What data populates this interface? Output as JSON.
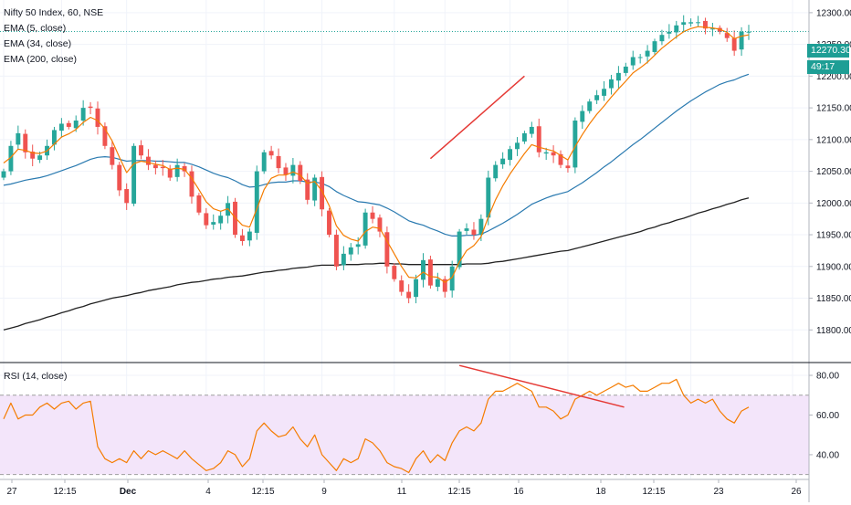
{
  "legend": {
    "symbol": "Nifty 50 Index, 60, NSE",
    "ema5": "EMA (5, close)",
    "ema34": "EMA (34, close)",
    "ema200": "EMA (200, close)",
    "rsi": "RSI (14, close)"
  },
  "price_badge": {
    "price": "12270.30",
    "countdown": "49:17"
  },
  "colors": {
    "up": "#26a69a",
    "down": "#ef5350",
    "ema5": "#f57c00",
    "ema34": "#2a7ab0",
    "ema200": "#222222",
    "rsi_line": "#f57c00",
    "rsi_band": "#f3e5fa",
    "trendline": "#e53935",
    "badge_bg": "#1e9e95",
    "axis_text": "#131722"
  },
  "chart_data": [
    {
      "type": "candlestick",
      "ylim": [
        11750,
        12320
      ],
      "yticks": [
        "12300.00",
        "12250.00",
        "12200.00",
        "12150.00",
        "12100.00",
        "12050.00",
        "12000.00",
        "11950.00",
        "11900.00",
        "11850.00",
        "11800.00"
      ],
      "ytick_values": [
        12300,
        12250,
        12200,
        12150,
        12100,
        12050,
        12000,
        11950,
        11900,
        11850,
        11800
      ],
      "xticks": [
        "27",
        "12:15",
        "Dec",
        "4",
        "12:15",
        "9",
        "11",
        "12:15",
        "16",
        "18",
        "12:15",
        "23",
        "26"
      ],
      "close": [
        12050,
        12090,
        12110,
        12080,
        12070,
        12075,
        12090,
        12115,
        12125,
        12120,
        12130,
        12150,
        12150,
        12120,
        12090,
        12060,
        12020,
        12000,
        12090,
        12075,
        12060,
        12055,
        12055,
        12040,
        12060,
        12050,
        12010,
        11985,
        11965,
        11970,
        11980,
        12000,
        11950,
        11940,
        11955,
        12050,
        12080,
        12075,
        12055,
        12045,
        12060,
        12035,
        12005,
        12040,
        11990,
        11950,
        11900,
        11920,
        11930,
        11935,
        11985,
        11975,
        11955,
        11900,
        11880,
        11860,
        11850,
        11880,
        11910,
        11870,
        11880,
        11860,
        11900,
        11955,
        11960,
        11950,
        11975,
        12040,
        12060,
        12070,
        12085,
        12095,
        12110,
        12120,
        12080,
        12080,
        12075,
        12060,
        12055,
        12130,
        12145,
        12160,
        12170,
        12180,
        12195,
        12205,
        12215,
        12230,
        12230,
        12240,
        12255,
        12265,
        12270,
        12280,
        12285,
        12285,
        12285,
        12275,
        12275,
        12270,
        12260,
        12240,
        12270,
        12270
      ],
      "ema5": [
        12063,
        12072,
        12085,
        12083,
        12079,
        12078,
        12082,
        12093,
        12104,
        12109,
        12116,
        12127,
        12135,
        12130,
        12117,
        12098,
        12072,
        12048,
        12062,
        12066,
        12064,
        12061,
        12059,
        12053,
        12055,
        12053,
        12039,
        12021,
        12002,
        11991,
        11987,
        11991,
        11977,
        11965,
        11962,
        11991,
        12021,
        12039,
        12044,
        12044,
        12049,
        12044,
        12031,
        12034,
        12019,
        11996,
        11964,
        11949,
        11943,
        11940,
        11955,
        11962,
        11960,
        11940,
        11920,
        11900,
        11883,
        11882,
        11891,
        11884,
        11883,
        11875,
        11883,
        11907,
        11925,
        11933,
        11947,
        11978,
        12005,
        12027,
        12046,
        12062,
        12078,
        12092,
        12088,
        12085,
        12082,
        12075,
        12068,
        12089,
        12108,
        12125,
        12140,
        12153,
        12167,
        12180,
        12192,
        12205,
        12213,
        12222,
        12233,
        12244,
        12253,
        12262,
        12270,
        12275,
        12278,
        12277,
        12276,
        12274,
        12269,
        12259,
        12263,
        12265
      ],
      "ema34": [
        12028,
        12030,
        12033,
        12036,
        12038,
        12040,
        12043,
        12047,
        12051,
        12055,
        12059,
        12064,
        12069,
        12072,
        12073,
        12072,
        12069,
        12066,
        12067,
        12067,
        12067,
        12066,
        12066,
        12065,
        12064,
        12064,
        12061,
        12057,
        12052,
        12047,
        12043,
        12040,
        12035,
        12029,
        12025,
        12026,
        12029,
        12032,
        12033,
        12033,
        12035,
        12035,
        12033,
        12033,
        12031,
        12026,
        12018,
        12012,
        12007,
        12002,
        12001,
        11999,
        11997,
        11992,
        11986,
        11979,
        11972,
        11968,
        11965,
        11960,
        11956,
        11951,
        11948,
        11948,
        11949,
        11949,
        11951,
        11956,
        11962,
        11968,
        11975,
        11982,
        11990,
        11998,
        12003,
        12008,
        12012,
        12015,
        12018,
        12025,
        12032,
        12040,
        12048,
        12057,
        12065,
        12074,
        12083,
        12092,
        12100,
        12109,
        12118,
        12127,
        12136,
        12145,
        12153,
        12161,
        12168,
        12175,
        12181,
        12187,
        12191,
        12194,
        12199,
        12203
      ],
      "ema200": [
        11800,
        11803,
        11806,
        11810,
        11813,
        11816,
        11820,
        11823,
        11827,
        11830,
        11834,
        11837,
        11841,
        11844,
        11847,
        11850,
        11852,
        11854,
        11857,
        11859,
        11862,
        11864,
        11866,
        11868,
        11871,
        11873,
        11875,
        11876,
        11878,
        11880,
        11881,
        11883,
        11884,
        11885,
        11887,
        11889,
        11891,
        11892,
        11894,
        11895,
        11897,
        11898,
        11899,
        11901,
        11902,
        11902,
        11902,
        11903,
        11903,
        11903,
        11904,
        11904,
        11905,
        11905,
        11904,
        11904,
        11903,
        11903,
        11903,
        11903,
        11903,
        11903,
        11903,
        11903,
        11904,
        11904,
        11904,
        11905,
        11907,
        11908,
        11910,
        11912,
        11914,
        11916,
        11918,
        11920,
        11922,
        11924,
        11925,
        11928,
        11931,
        11934,
        11937,
        11940,
        11943,
        11946,
        11949,
        11952,
        11955,
        11959,
        11962,
        11966,
        11969,
        11973,
        11976,
        11980,
        11984,
        11987,
        11991,
        11994,
        11998,
        12001,
        12005,
        12008
      ],
      "trendline_points": [
        [
          59,
          12070
        ],
        [
          72,
          12200
        ]
      ]
    },
    {
      "type": "line",
      "name": "RSI",
      "ylim": [
        28,
        86
      ],
      "yticks": [
        "80.00",
        "60.00",
        "40.00"
      ],
      "ytick_values": [
        80,
        60,
        40
      ],
      "band": [
        30,
        70
      ],
      "values": [
        58,
        66,
        58,
        60,
        60,
        64,
        66,
        63,
        66,
        67,
        63,
        66,
        67,
        44,
        38,
        36,
        38,
        36,
        42,
        38,
        42,
        40,
        42,
        40,
        38,
        42,
        38,
        35,
        32,
        33,
        36,
        42,
        40,
        34,
        38,
        52,
        56,
        52,
        49,
        50,
        54,
        48,
        44,
        50,
        40,
        36,
        32,
        38,
        36,
        38,
        48,
        46,
        42,
        36,
        34,
        33,
        31,
        38,
        42,
        36,
        40,
        37,
        46,
        52,
        54,
        52,
        56,
        68,
        72,
        72,
        74,
        76,
        74,
        72,
        64,
        64,
        62,
        58,
        60,
        68,
        70,
        72,
        70,
        72,
        74,
        76,
        74,
        75,
        72,
        72,
        74,
        76,
        76,
        78,
        70,
        66,
        68,
        66,
        68,
        62,
        58,
        56,
        62,
        64
      ],
      "trendline_points": [
        [
          63,
          85
        ],
        [
          83,
          64
        ]
      ]
    }
  ]
}
